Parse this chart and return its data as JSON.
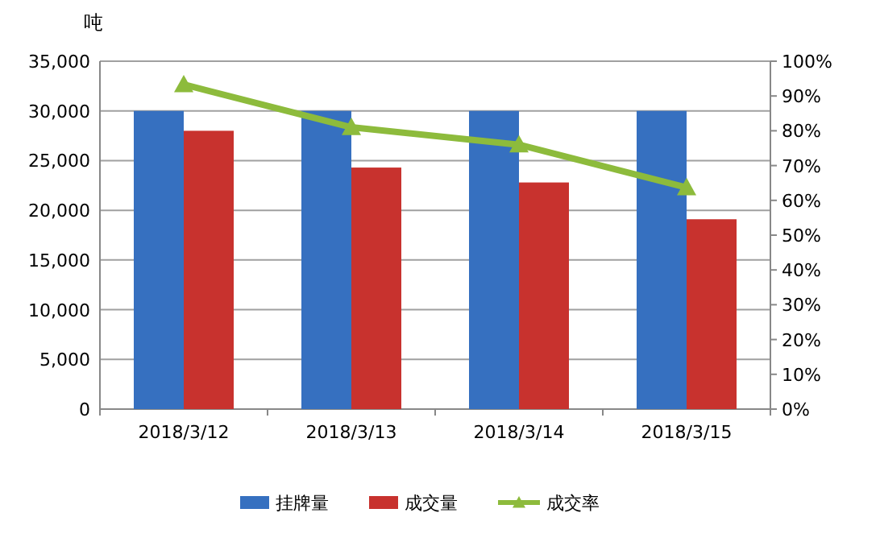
{
  "chart_data": {
    "type": "bar",
    "ylabel": "吨",
    "categories": [
      "2018/3/12",
      "2018/3/13",
      "2018/3/14",
      "2018/3/15"
    ],
    "series": [
      {
        "name": "挂牌量",
        "color": "#3670c0",
        "values": [
          30000,
          30000,
          30000,
          30000
        ]
      },
      {
        "name": "成交量",
        "color": "#c8322e",
        "values": [
          28000,
          24300,
          22800,
          19100
        ]
      },
      {
        "name": "成交率",
        "color": "#8dbb3c",
        "type": "line",
        "axis": "y2",
        "marker": "triangle",
        "values": [
          93.3,
          81,
          76,
          63.7
        ]
      }
    ],
    "ylim": [
      0,
      35000
    ],
    "yticks": [
      {
        "value": 0,
        "label": "0"
      },
      {
        "value": 5000,
        "label": "5,000"
      },
      {
        "value": 10000,
        "label": "10,000"
      },
      {
        "value": 15000,
        "label": "15,000"
      },
      {
        "value": 20000,
        "label": "20,000"
      },
      {
        "value": 25000,
        "label": "25,000"
      },
      {
        "value": 30000,
        "label": "30,000"
      },
      {
        "value": 35000,
        "label": "35,000"
      }
    ],
    "y2lim": [
      0,
      100
    ],
    "y2ticks": [
      {
        "value": 0,
        "label": "0%"
      },
      {
        "value": 10,
        "label": "10%"
      },
      {
        "value": 20,
        "label": "20%"
      },
      {
        "value": 30,
        "label": "30%"
      },
      {
        "value": 40,
        "label": "40%"
      },
      {
        "value": 50,
        "label": "50%"
      },
      {
        "value": 60,
        "label": "60%"
      },
      {
        "value": 70,
        "label": "70%"
      },
      {
        "value": 80,
        "label": "80%"
      },
      {
        "value": 90,
        "label": "90%"
      },
      {
        "value": 100,
        "label": "100%"
      }
    ],
    "grid": "y",
    "legend": "bottom"
  }
}
